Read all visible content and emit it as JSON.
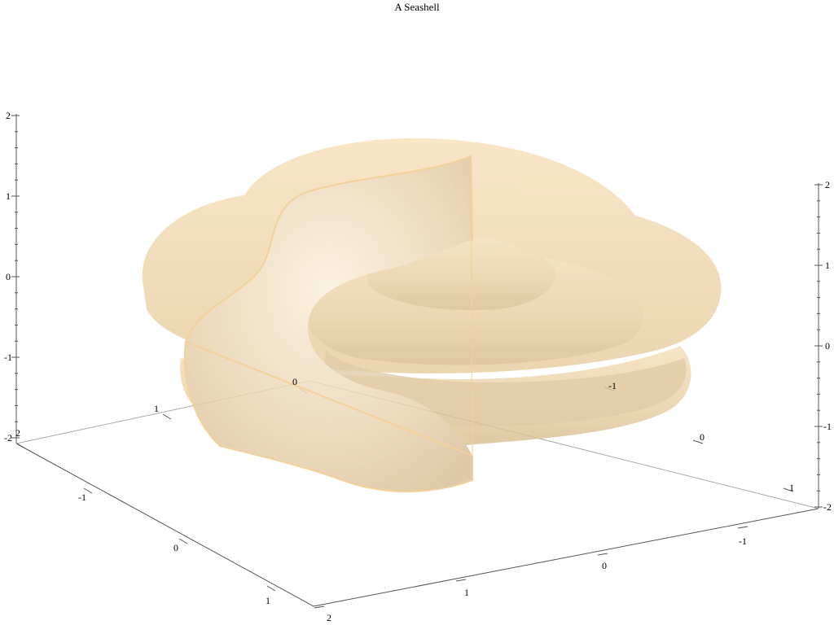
{
  "chart_data": {
    "type": "surface3d",
    "title": "A Seashell",
    "surface_color": "#f5deb3",
    "edge_color": "#f2c98a",
    "background_color": "#ffffff",
    "axis_color": "#555555",
    "x": {
      "ticks": [
        "2",
        "1",
        "0",
        "-1"
      ],
      "range": [
        -2,
        2
      ]
    },
    "y": {
      "ticks": [
        "2",
        "1",
        "0",
        "-1",
        "-2"
      ],
      "range": [
        -2,
        2
      ]
    },
    "y_back": {
      "ticks": [
        "1",
        "0",
        "-1"
      ]
    },
    "z_left": {
      "ticks": [
        "2",
        "1",
        "0",
        "-1",
        "-2"
      ],
      "range": [
        -2,
        2
      ]
    },
    "z_right": {
      "ticks": [
        "2",
        "1",
        "0",
        "-1",
        "-2"
      ],
      "range": [
        -2,
        2
      ]
    },
    "grid": false,
    "legend": "none"
  }
}
